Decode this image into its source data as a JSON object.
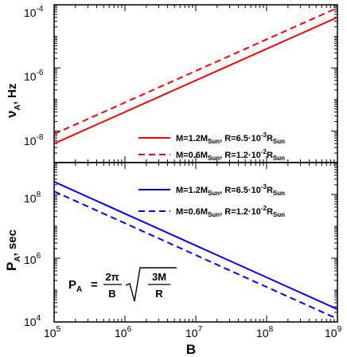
{
  "chart_data": [
    {
      "type": "line",
      "panel": "top",
      "ylabel": "ν_A, Hz",
      "ylabel_main": "ν",
      "ylabel_sub": "A",
      "ylabel_rest": ", Hz",
      "xscale": "log",
      "yscale": "log",
      "xlim": [
        100000,
        1000000000
      ],
      "ylim": [
        1e-09,
        0.0001
      ],
      "y_ticks": [
        {
          "value": 0.0001,
          "base": "10",
          "exp": "-4"
        },
        {
          "value": 1e-06,
          "base": "10",
          "exp": "-6"
        },
        {
          "value": 1e-08,
          "base": "10",
          "exp": "-8"
        }
      ],
      "legend_position": "bottom-right",
      "series": [
        {
          "name": "M=1.2M_Sun, R=6.5·10^-3 R_Sun",
          "color": "#ff0000",
          "style": "solid",
          "x": [
            100000,
            1000000000
          ],
          "y": [
            4e-09,
            4e-05
          ],
          "legend": {
            "a": "M=1.2M",
            "b": "Sun",
            "c": ", R=6.5·10",
            "d": "-3",
            "e": "R",
            "f": "Sun"
          }
        },
        {
          "name": "M=0.6M_Sun, R=1.2·10^-2 R_Sun",
          "color": "#ff0000",
          "style": "dashed",
          "x": [
            100000,
            1000000000
          ],
          "y": [
            8e-09,
            8e-05
          ],
          "legend": {
            "a": "M=0.6M",
            "b": "Sun",
            "c": ", R=1.2·10",
            "d": "-2",
            "e": "R",
            "f": "Sun"
          }
        }
      ]
    },
    {
      "type": "line",
      "panel": "bottom",
      "ylabel": "P_A, sec",
      "ylabel_main": "P",
      "ylabel_sub": "A",
      "ylabel_rest": ", sec",
      "xlabel": "B",
      "xscale": "log",
      "yscale": "log",
      "xlim": [
        100000,
        1000000000
      ],
      "ylim": [
        10000,
        1000000000
      ],
      "y_ticks": [
        {
          "value": 100000000,
          "base": "10",
          "exp": "8"
        },
        {
          "value": 1000000,
          "base": "10",
          "exp": "6"
        },
        {
          "value": 10000,
          "base": "10",
          "exp": "4"
        }
      ],
      "x_ticks": [
        {
          "value": 100000,
          "base": "10",
          "exp": "5"
        },
        {
          "value": 1000000,
          "base": "10",
          "exp": "6"
        },
        {
          "value": 10000000,
          "base": "10",
          "exp": "7"
        },
        {
          "value": 100000000,
          "base": "10",
          "exp": "8"
        },
        {
          "value": 1000000000,
          "base": "10",
          "exp": "9"
        }
      ],
      "legend_position": "top-right",
      "series": [
        {
          "name": "M=1.2M_Sun, R=6.5·10^-3 R_Sun",
          "color": "#0000ff",
          "style": "solid",
          "x": [
            100000,
            1000000000
          ],
          "y": [
            250000000,
            25000
          ],
          "legend": {
            "a": "M=1.2M",
            "b": "Sun",
            "c": ", R=6.5·10",
            "d": "-3",
            "e": "R",
            "f": "Sun"
          }
        },
        {
          "name": "M=0.6M_Sun, R=1.2·10^-2 R_Sun",
          "color": "#0000ff",
          "style": "dashed",
          "x": [
            100000,
            1000000000
          ],
          "y": [
            125000000,
            12500
          ],
          "legend": {
            "a": "M=0.6M",
            "b": "Sun",
            "c": ", R=1.2·10",
            "d": "-2",
            "e": "R",
            "f": "Sun"
          }
        }
      ],
      "annotation": {
        "lhs": "P",
        "lhs_sub": "A",
        "eq": "=",
        "num": "2π",
        "den": "B",
        "rnum": "3M",
        "rden": "R"
      }
    }
  ]
}
